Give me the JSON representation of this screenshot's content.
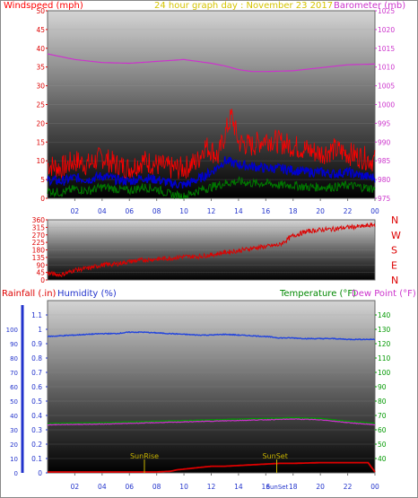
{
  "header": {
    "left": "Windspeed (mph)",
    "center": "24 hour graph day : November 23 2017",
    "right": "Barometer (mb)"
  },
  "lower_header": {
    "rainfall": "Rainfall (.in)",
    "humidity": "Humidity (%)",
    "temperature": "Temperature (°F)",
    "dewpoint": "Dew Point (°F)"
  },
  "colors": {
    "wind_gust": "#ff0000",
    "wind_avg": "#0000cc",
    "wind_low": "#007700",
    "barometer": "#cc33cc",
    "direction": "#dd0000",
    "humidity": "#2244dd",
    "temperature": "#009900",
    "dewpoint": "#cc33cc",
    "rainfall": "#dd0000",
    "markers": "#c8b400"
  },
  "chart_data": [
    {
      "type": "line",
      "name": "wind_barometer",
      "x_tick_labels": [
        "02",
        "04",
        "06",
        "08",
        "10",
        "12",
        "14",
        "16",
        "18",
        "20",
        "22",
        "00"
      ],
      "y_left": {
        "label": "Windspeed (mph)",
        "range": [
          0,
          50
        ],
        "ticks": [
          "0",
          "5",
          "10",
          "15",
          "20",
          "25",
          "30",
          "35",
          "40",
          "45",
          "50"
        ]
      },
      "y_right": {
        "label": "Barometer (mb)",
        "range": [
          975,
          1025
        ],
        "ticks": [
          "975",
          "980",
          "985",
          "990",
          "995",
          "1000",
          "1005",
          "1010",
          "1015",
          "1020",
          "1025"
        ]
      },
      "series": [
        {
          "name": "gust",
          "axis": "left",
          "x": [
            0,
            1,
            2,
            3,
            4,
            5,
            6,
            7,
            8,
            9,
            10,
            11,
            11.5,
            12,
            12.5,
            13,
            13.5,
            14,
            15,
            16,
            17,
            18,
            19,
            20,
            21,
            22,
            23,
            24
          ],
          "values": [
            9,
            8,
            10,
            9,
            11,
            9,
            8,
            10,
            9,
            8,
            8,
            10,
            14,
            13,
            11,
            17,
            22,
            15,
            14,
            16,
            15,
            14,
            13,
            12,
            13,
            12,
            11,
            10
          ]
        },
        {
          "name": "average",
          "axis": "left",
          "x": [
            0,
            1,
            2,
            3,
            4,
            5,
            6,
            7,
            8,
            9,
            10,
            11,
            12,
            13,
            14,
            15,
            16,
            17,
            18,
            19,
            20,
            21,
            22,
            23,
            24
          ],
          "values": [
            5,
            4.5,
            5.5,
            5,
            6,
            5,
            4.5,
            5.5,
            5,
            4,
            3.5,
            5,
            7,
            10,
            9,
            8.5,
            8,
            8,
            7.5,
            7,
            7,
            6.5,
            7,
            6,
            5.5
          ]
        },
        {
          "name": "low",
          "axis": "left",
          "x": [
            0,
            1,
            2,
            3,
            4,
            5,
            6,
            7,
            8,
            9,
            10,
            11,
            12,
            13,
            14,
            15,
            16,
            17,
            18,
            19,
            20,
            21,
            22,
            23,
            24
          ],
          "values": [
            2,
            1.5,
            2.5,
            2,
            3,
            2.5,
            2,
            3,
            2.5,
            1,
            0.5,
            2,
            3,
            4,
            4.5,
            4,
            4,
            3.5,
            3.5,
            3,
            3,
            3,
            3.5,
            3,
            2.5
          ]
        },
        {
          "name": "barometer",
          "axis": "right",
          "x": [
            0,
            2,
            4,
            6,
            8,
            10,
            12,
            13,
            14,
            15,
            16,
            18,
            20,
            22,
            24
          ],
          "values": [
            1013.5,
            1012,
            1011.2,
            1011,
            1011.5,
            1012,
            1011,
            1010.3,
            1009.3,
            1008.8,
            1008.8,
            1009,
            1009.8,
            1010.6,
            1010.8
          ]
        }
      ]
    },
    {
      "type": "line",
      "name": "wind_direction",
      "y_left": {
        "range": [
          0,
          360
        ],
        "ticks": [
          "0",
          "45",
          "90",
          "135",
          "180",
          "225",
          "270",
          "315",
          "360"
        ]
      },
      "y_right_labels": [
        "N",
        "W",
        "S",
        "E",
        "N"
      ],
      "series": [
        {
          "name": "direction",
          "x": [
            0,
            1,
            2,
            3,
            4,
            5,
            6,
            7,
            8,
            9,
            10,
            11,
            12,
            13,
            14,
            15,
            16,
            17,
            18,
            19,
            20,
            21,
            22,
            23,
            24
          ],
          "values": [
            40,
            30,
            60,
            70,
            90,
            95,
            110,
            120,
            125,
            130,
            140,
            140,
            150,
            165,
            175,
            190,
            200,
            210,
            265,
            290,
            300,
            305,
            315,
            320,
            330
          ]
        }
      ]
    },
    {
      "type": "line",
      "name": "rain_humidity_temp",
      "x_tick_labels": [
        "02",
        "04",
        "06",
        "08",
        "10",
        "12",
        "14",
        "16",
        "18",
        "20",
        "22",
        "00"
      ],
      "y_left": {
        "label": "Rainfall (.in) / Humidity (%)",
        "range": [
          0,
          1.2
        ],
        "ticks": [
          "0",
          "0.1",
          "0.2",
          "0.3",
          "0.4",
          "0.5",
          "0.6",
          "0.7",
          "0.8",
          "0.9",
          "1",
          "1.1"
        ],
        "outer_ticks": [
          "0",
          "10",
          "20",
          "30",
          "40",
          "50",
          "60",
          "70",
          "80",
          "90",
          "100"
        ]
      },
      "y_right": {
        "label": "Temperature (°F)",
        "range": [
          30,
          150
        ],
        "ticks": [
          "40",
          "50",
          "60",
          "70",
          "80",
          "90",
          "100",
          "110",
          "120",
          "130",
          "140"
        ]
      },
      "annotations": [
        {
          "label": "SunRise",
          "x": 7.1
        },
        {
          "label": "SunSet",
          "x": 16.8
        }
      ],
      "series": [
        {
          "name": "humidity",
          "x": [
            0,
            1,
            2,
            3,
            4,
            5,
            6,
            7,
            8,
            9,
            10,
            11,
            12,
            13,
            14,
            15,
            16,
            17,
            18,
            19,
            20,
            21,
            22,
            23,
            24
          ],
          "values": [
            95,
            95.5,
            96,
            96.5,
            97,
            97,
            98,
            98,
            97.5,
            97,
            96.5,
            96,
            96,
            96.5,
            96,
            95.5,
            95,
            94,
            94,
            93.5,
            93.5,
            93.5,
            93,
            93,
            93
          ]
        },
        {
          "name": "temperature",
          "x": [
            0,
            2,
            4,
            6,
            8,
            10,
            12,
            14,
            16,
            18,
            20,
            22,
            24
          ],
          "values": [
            64.5,
            64.8,
            65,
            65.5,
            66,
            66.5,
            67,
            67.5,
            68,
            68.5,
            68,
            66,
            64.5
          ]
        },
        {
          "name": "dewpoint",
          "x": [
            0,
            2,
            4,
            6,
            8,
            10,
            12,
            14,
            16,
            18,
            20,
            22,
            24
          ],
          "values": [
            63.5,
            63.8,
            64,
            64.5,
            65,
            65.5,
            66,
            66.5,
            67,
            67.5,
            67,
            65,
            63.5
          ]
        },
        {
          "name": "rainfall",
          "x": [
            0,
            8,
            9,
            9.5,
            10,
            11,
            12,
            13,
            14,
            15,
            16,
            17,
            18,
            20,
            22,
            23.5,
            24
          ],
          "values": [
            0,
            0,
            0.005,
            0.015,
            0.02,
            0.03,
            0.04,
            0.04,
            0.045,
            0.05,
            0.055,
            0.06,
            0.06,
            0.065,
            0.065,
            0.065,
            0
          ]
        }
      ]
    }
  ]
}
